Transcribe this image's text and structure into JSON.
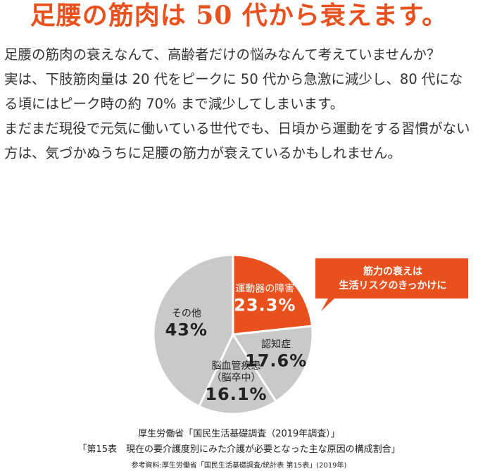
{
  "header": {
    "title": "足腰の筋肉は 50 代から衰えます。"
  },
  "body": {
    "paragraphs": [
      "足腰の筋肉の衰えなんて、高齢者だけの悩みなんて考えていませんか？",
      "実は、下肢筋肉量は 20 代をピークに 50 代から急激に減少し、80 代になる頃にはピーク時の約 70% まで減少してしまいます。",
      "まだまだ現役で元気に働いている世代でも、日頃から運動をする習慣がない方は、気づかぬうちに足腰の筋力が衰えているかもしれません。"
    ]
  },
  "chart_data": {
    "type": "pie",
    "categories": [
      "運動器の障害",
      "認知症",
      "脳血管疾患\n（脳卒中）",
      "その他"
    ],
    "values": [
      23.3,
      17.6,
      16.1,
      43
    ],
    "value_labels": [
      "23.3%",
      "17.6%",
      "16.1%",
      "43%"
    ],
    "colors": [
      "#e8501e",
      "#c9c9c9",
      "#c9c9c9",
      "#c9c9c9"
    ],
    "annotation": "筋力の衰えは\n生活リスクのきっかけに",
    "sources": [
      "厚生労働省「国民生活基礎調査（2019年調査）」",
      "「第15表　現在の要介護度別にみた介護が必要となった主な原因の構成割合」",
      "参考資料:厚生労働省「国民生活基礎調査/統計表 第15表」(2019年)"
    ]
  }
}
